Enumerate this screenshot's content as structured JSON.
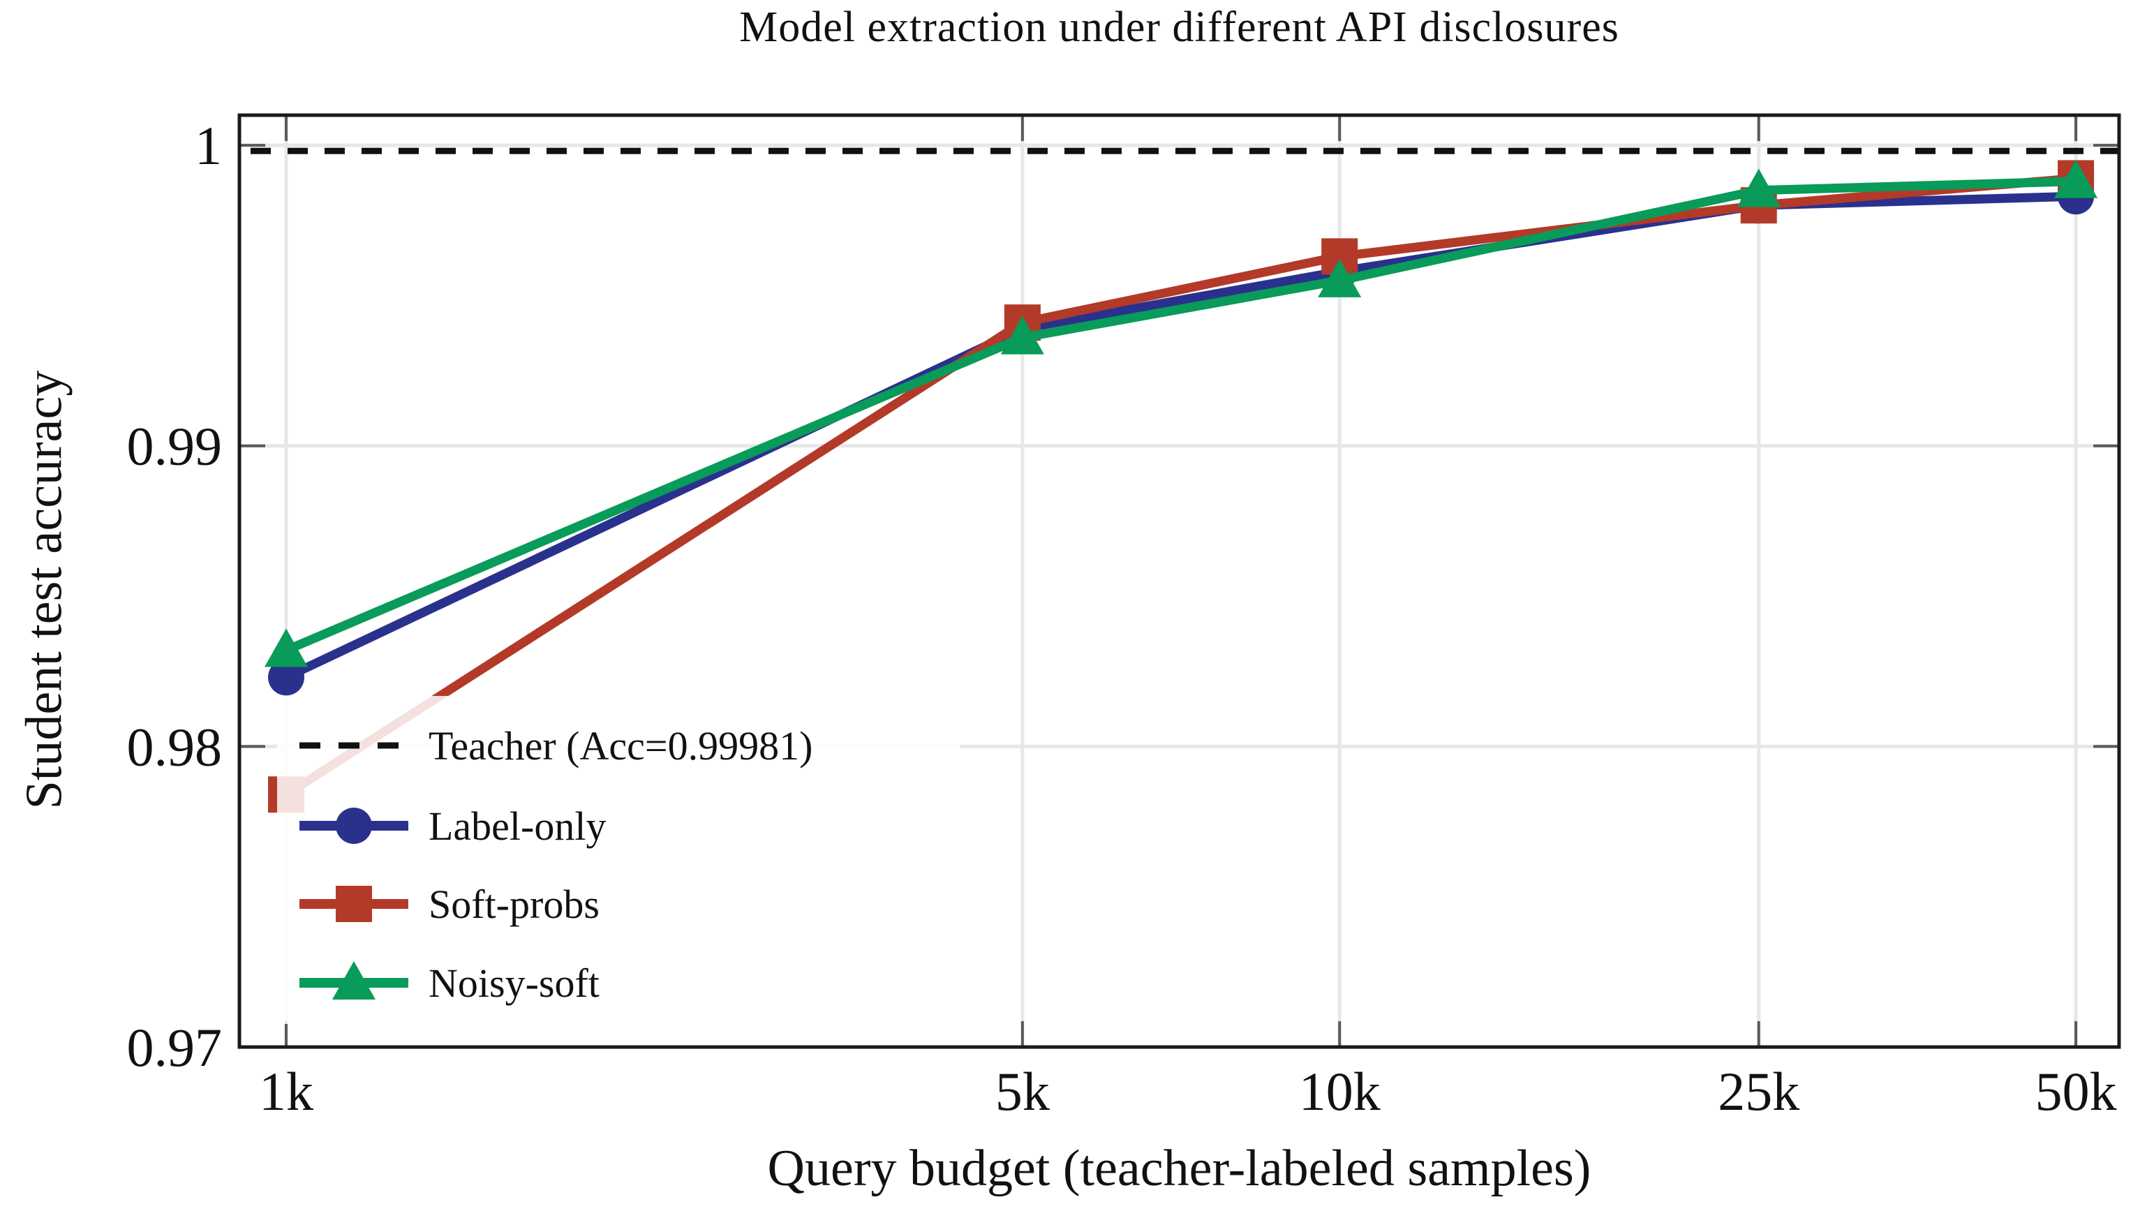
{
  "page": {
    "background": "#ffffff"
  },
  "chart_data": {
    "type": "line",
    "title": "Model extraction under different API disclosures",
    "xlabel": "Query budget (teacher-labeled samples)",
    "ylabel": "Student test accuracy",
    "x_scale": "log",
    "x": [
      1000,
      5000,
      10000,
      25000,
      50000
    ],
    "x_tick_labels": [
      "1k",
      "5k",
      "10k",
      "25k",
      "50k"
    ],
    "y_ticks": [
      0.97,
      0.98,
      0.99,
      1
    ],
    "y_tick_labels": [
      "0.97",
      "0.98",
      "0.99",
      "1"
    ],
    "ylim": [
      0.97,
      1.001
    ],
    "grid": true,
    "grid_color": "#e7e7e7",
    "tick_color": "#5a5a5a",
    "frame_color": "#1a1a1a",
    "teacher_line": {
      "label": "Teacher (Acc=0.99981)",
      "value": 0.99981,
      "color": "#111111",
      "style": "dashed"
    },
    "series": [
      {
        "name": "Label-only",
        "marker": "circle",
        "color": "#2a318d",
        "values": [
          0.9823,
          0.9939,
          0.9958,
          0.998,
          0.9983
        ]
      },
      {
        "name": "Soft-probs",
        "marker": "square",
        "color": "#b33a28",
        "values": [
          0.9784,
          0.9941,
          0.9963,
          0.998,
          0.9989
        ]
      },
      {
        "name": "Noisy-soft",
        "marker": "triangle",
        "color": "#099b59",
        "values": [
          0.9832,
          0.9936,
          0.9955,
          0.9985,
          0.9988
        ]
      }
    ],
    "legend": {
      "position": "lower-left",
      "background": "rgba(255,255,255,0.85)",
      "entries": [
        "Teacher (Acc=0.99981)",
        "Label-only",
        "Soft-probs",
        "Noisy-soft"
      ]
    }
  }
}
